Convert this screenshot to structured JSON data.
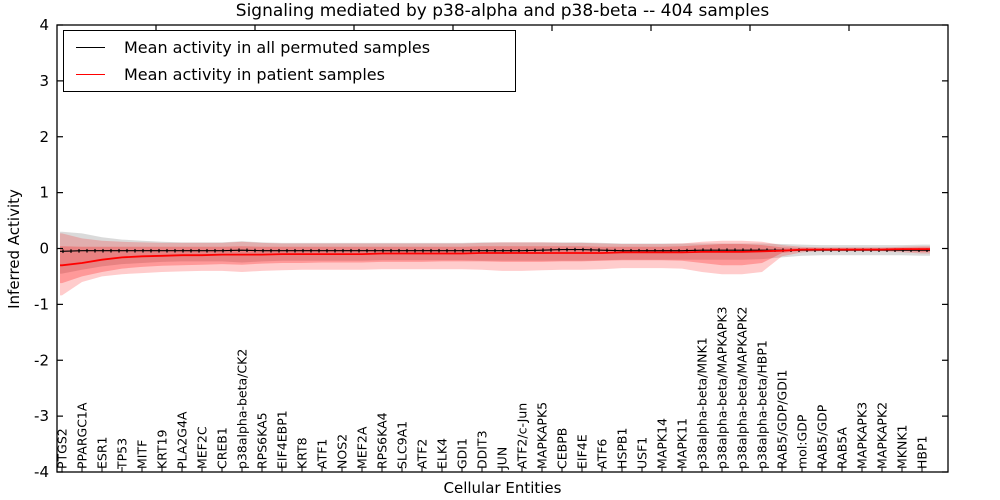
{
  "figure": {
    "title": "Signaling mediated by p38-alpha and p38-beta -- 404 samples",
    "xlabel": "Cellular Entities",
    "ylabel": "Inferred Activity"
  },
  "legend": {
    "entries": [
      {
        "label": "Mean activity in all permuted samples",
        "color": "#000000"
      },
      {
        "label": "Mean activity in patient samples",
        "color": "#ff0000"
      }
    ]
  },
  "chart_data": {
    "type": "line",
    "title": "Signaling mediated by p38-alpha and p38-beta -- 404 samples",
    "xlabel": "Cellular Entities",
    "ylabel": "Inferred Activity",
    "ylim": [
      -4,
      4
    ],
    "yticks": [
      4,
      3,
      2,
      1,
      0,
      -1,
      -2,
      -3,
      -4
    ],
    "grid": false,
    "legend_position": "upper left",
    "categories": [
      "PTGS2",
      "PPARGC1A",
      "ESR1",
      "TP53",
      "MITF",
      "KRT19",
      "PLA2G4A",
      "MEF2C",
      "CREB1",
      "p38alpha-beta/CK2",
      "RPS6KA5",
      "EIF4EBP1",
      "KRT8",
      "ATF1",
      "NOS2",
      "MEF2A",
      "RPS6KA4",
      "SLC9A1",
      "ATF2",
      "ELK4",
      "GDI1",
      "DDIT3",
      "JUN",
      "ATF2/c-Jun",
      "MAPKAPK5",
      "CEBPB",
      "EIF4E",
      "ATF6",
      "HSPB1",
      "USF1",
      "MAPK14",
      "MAPK11",
      "p38alpha-beta/MNK1",
      "p38alpha-beta/MAPKAPK3",
      "p38alpha-beta/MAPKAPK2",
      "p38alpha-beta/HBP1",
      "RAB5/GDP/GDI1",
      "mol:GDP",
      "RAB5/GDP",
      "RAB5A",
      "MAPKAPK3",
      "MAPKAPK2",
      "MKNK1",
      "HBP1"
    ],
    "series": [
      {
        "name": "Mean activity in all permuted samples",
        "color": "#000000",
        "width": 1.1,
        "marker": "tick",
        "values": [
          -0.05,
          -0.04,
          -0.04,
          -0.04,
          -0.04,
          -0.04,
          -0.04,
          -0.04,
          -0.04,
          -0.03,
          -0.04,
          -0.04,
          -0.04,
          -0.04,
          -0.04,
          -0.04,
          -0.04,
          -0.04,
          -0.04,
          -0.04,
          -0.04,
          -0.04,
          -0.04,
          -0.04,
          -0.03,
          -0.02,
          -0.02,
          -0.03,
          -0.04,
          -0.04,
          -0.04,
          -0.04,
          -0.03,
          -0.03,
          -0.03,
          -0.03,
          -0.03,
          -0.03,
          -0.03,
          -0.03,
          -0.03,
          -0.03,
          -0.03,
          -0.03
        ]
      },
      {
        "name": "Mean activity in patient samples",
        "color": "#ff0000",
        "width": 1.8,
        "marker": "none",
        "values": [
          -0.3,
          -0.26,
          -0.2,
          -0.16,
          -0.14,
          -0.13,
          -0.12,
          -0.12,
          -0.11,
          -0.11,
          -0.11,
          -0.1,
          -0.1,
          -0.1,
          -0.1,
          -0.1,
          -0.09,
          -0.09,
          -0.09,
          -0.09,
          -0.09,
          -0.08,
          -0.08,
          -0.08,
          -0.08,
          -0.08,
          -0.08,
          -0.08,
          -0.07,
          -0.07,
          -0.07,
          -0.07,
          -0.06,
          -0.06,
          -0.06,
          -0.05,
          -0.04,
          -0.02,
          -0.02,
          -0.02,
          -0.02,
          -0.02,
          -0.01,
          -0.01
        ]
      }
    ],
    "bands": [
      {
        "name": "permuted-sample-range",
        "color": "#a8a8a8",
        "opacity": 0.42,
        "upper": [
          0.3,
          0.27,
          0.2,
          0.16,
          0.14,
          0.12,
          0.11,
          0.11,
          0.11,
          0.13,
          0.11,
          0.1,
          0.1,
          0.1,
          0.1,
          0.1,
          0.1,
          0.1,
          0.1,
          0.1,
          0.1,
          0.11,
          0.11,
          0.11,
          0.11,
          0.11,
          0.11,
          0.1,
          0.09,
          0.09,
          0.09,
          0.09,
          0.09,
          0.09,
          0.09,
          0.09,
          0.08,
          0.07,
          0.06,
          0.06,
          0.06,
          0.06,
          0.06,
          0.07
        ],
        "lower": [
          -0.45,
          -0.38,
          -0.32,
          -0.28,
          -0.26,
          -0.24,
          -0.23,
          -0.23,
          -0.23,
          -0.25,
          -0.23,
          -0.22,
          -0.22,
          -0.22,
          -0.22,
          -0.22,
          -0.21,
          -0.21,
          -0.21,
          -0.21,
          -0.21,
          -0.22,
          -0.22,
          -0.22,
          -0.22,
          -0.22,
          -0.22,
          -0.21,
          -0.2,
          -0.2,
          -0.2,
          -0.2,
          -0.2,
          -0.2,
          -0.2,
          -0.19,
          -0.16,
          -0.13,
          -0.12,
          -0.12,
          -0.12,
          -0.12,
          -0.12,
          -0.13
        ]
      },
      {
        "name": "patient-sample-range-outer",
        "color": "#ff0000",
        "opacity": 0.2,
        "upper": [
          0.27,
          0.18,
          0.14,
          0.12,
          0.11,
          0.1,
          0.1,
          0.1,
          0.1,
          0.12,
          0.1,
          0.09,
          0.09,
          0.09,
          0.09,
          0.09,
          0.09,
          0.09,
          0.09,
          0.09,
          0.09,
          0.1,
          0.11,
          0.11,
          0.11,
          0.1,
          0.1,
          0.09,
          0.08,
          0.08,
          0.08,
          0.09,
          0.12,
          0.14,
          0.14,
          0.12,
          0.06,
          0.03,
          0.02,
          0.02,
          0.02,
          0.02,
          0.03,
          0.04
        ],
        "lower": [
          -0.84,
          -0.6,
          -0.5,
          -0.46,
          -0.44,
          -0.42,
          -0.41,
          -0.4,
          -0.4,
          -0.42,
          -0.4,
          -0.39,
          -0.38,
          -0.38,
          -0.38,
          -0.38,
          -0.37,
          -0.37,
          -0.37,
          -0.37,
          -0.37,
          -0.38,
          -0.4,
          -0.4,
          -0.39,
          -0.38,
          -0.38,
          -0.37,
          -0.35,
          -0.35,
          -0.35,
          -0.36,
          -0.42,
          -0.46,
          -0.46,
          -0.42,
          -0.14,
          -0.07,
          -0.05,
          -0.05,
          -0.05,
          -0.05,
          -0.07,
          -0.09
        ]
      },
      {
        "name": "patient-sample-range-inner",
        "color": "#ff0000",
        "opacity": 0.25,
        "upper": [
          0.04,
          0.03,
          0.03,
          0.03,
          0.03,
          0.03,
          0.03,
          0.03,
          0.03,
          0.04,
          0.03,
          0.03,
          0.03,
          0.03,
          0.03,
          0.03,
          0.03,
          0.03,
          0.03,
          0.03,
          0.03,
          0.04,
          0.04,
          0.04,
          0.04,
          0.04,
          0.04,
          0.03,
          0.03,
          0.03,
          0.03,
          0.04,
          0.06,
          0.08,
          0.08,
          0.06,
          0.02,
          0.01,
          0.01,
          0.01,
          0.01,
          0.01,
          0.01,
          0.02
        ],
        "lower": [
          -0.62,
          -0.5,
          -0.42,
          -0.36,
          -0.33,
          -0.31,
          -0.3,
          -0.29,
          -0.28,
          -0.29,
          -0.27,
          -0.26,
          -0.26,
          -0.25,
          -0.25,
          -0.25,
          -0.24,
          -0.24,
          -0.24,
          -0.23,
          -0.23,
          -0.23,
          -0.24,
          -0.24,
          -0.24,
          -0.23,
          -0.23,
          -0.22,
          -0.21,
          -0.21,
          -0.21,
          -0.22,
          -0.26,
          -0.3,
          -0.3,
          -0.26,
          -0.08,
          -0.04,
          -0.03,
          -0.03,
          -0.03,
          -0.03,
          -0.04,
          -0.06
        ]
      }
    ]
  }
}
